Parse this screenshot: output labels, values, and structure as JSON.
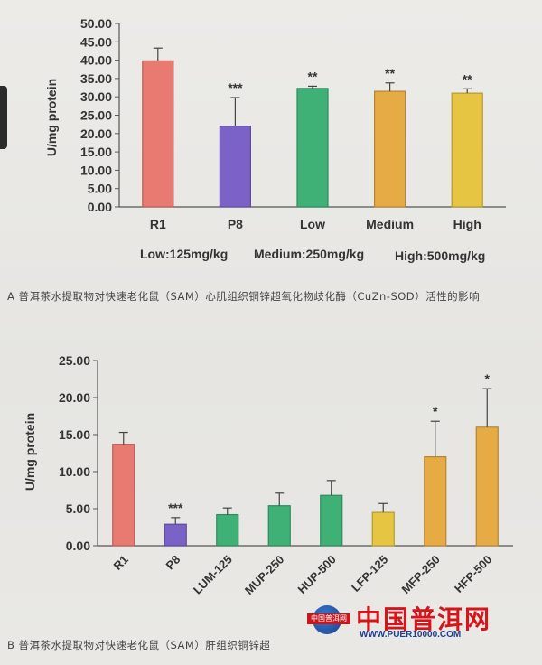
{
  "chart_data": [
    {
      "type": "bar",
      "ylabel": "U/mg protein",
      "ylim": [
        0,
        50
      ],
      "yticks": [
        "0.00",
        "5.00",
        "10.00",
        "15.00",
        "20.00",
        "25.00",
        "30.00",
        "35.00",
        "40.00",
        "45.00",
        "50.00"
      ],
      "categories": [
        "R1",
        "P8",
        "Low",
        "Medium",
        "High"
      ],
      "values": [
        39.8,
        22.0,
        32.3,
        31.5,
        31.0
      ],
      "errors": [
        3.5,
        7.8,
        0.6,
        2.3,
        1.2
      ],
      "significance": [
        "",
        "***",
        "**",
        "**",
        "**"
      ],
      "colors": [
        "#e97a72",
        "#7a62c6",
        "#3fb177",
        "#e6ab45",
        "#e6c542"
      ],
      "dose_labels": [
        "Low:125mg/kg",
        "Medium:250mg/kg",
        "High:500mg/kg"
      ],
      "caption": "A 普洱茶水提取物对快速老化鼠（SAM）心肌组织铜锌超氧化物歧化酶（CuZn-SOD）活性的影响",
      "grid": false
    },
    {
      "type": "bar",
      "ylabel": "U/mg protein",
      "ylim": [
        0,
        25
      ],
      "yticks": [
        "0.00",
        "5.00",
        "10.00",
        "15.00",
        "20.00",
        "25.00"
      ],
      "categories": [
        "R1",
        "P8",
        "LUM-125",
        "MUP-250",
        "HUP-500",
        "LFP-125",
        "MFP-250",
        "HFP-500"
      ],
      "values": [
        13.7,
        2.9,
        4.2,
        5.4,
        6.8,
        4.5,
        12.0,
        16.0
      ],
      "errors": [
        1.6,
        0.9,
        0.9,
        1.7,
        2.0,
        1.2,
        4.8,
        5.2
      ],
      "significance": [
        "",
        "***",
        "",
        "",
        "",
        "",
        "*",
        "*"
      ],
      "colors": [
        "#e97a72",
        "#7a62c6",
        "#3fb177",
        "#3fb177",
        "#3fb177",
        "#e6c542",
        "#e6ab45",
        "#e6ab45"
      ],
      "caption": "B 普洱茶水提取物对快速老化鼠（SAM）肝组织铜锌超",
      "grid": false
    }
  ],
  "watermark": {
    "title": "中国普洱网",
    "url": "WWW.PUER10000.COM",
    "badge": "中国普洱网"
  }
}
